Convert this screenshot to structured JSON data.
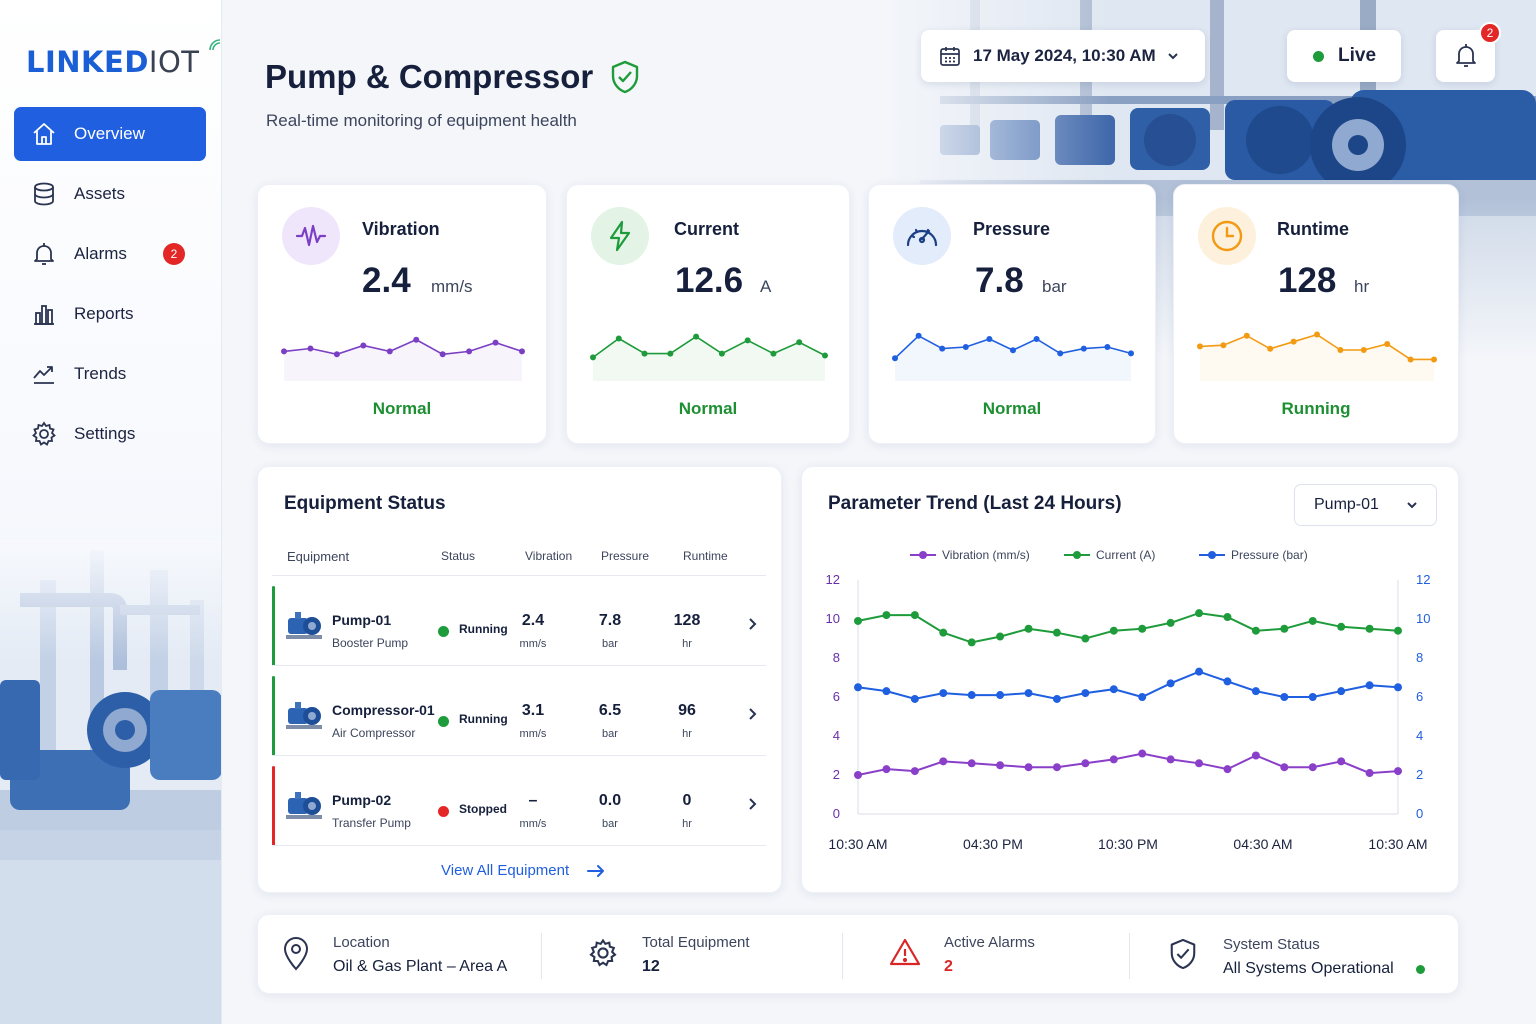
{
  "brand": {
    "logo_main": "LINKED",
    "logo_iot": "IOT"
  },
  "sidebar": {
    "items": [
      {
        "label": "Overview",
        "icon": "home-icon",
        "active": true
      },
      {
        "label": "Assets",
        "icon": "database-icon"
      },
      {
        "label": "Alarms",
        "icon": "bell-icon",
        "badge": "2"
      },
      {
        "label": "Reports",
        "icon": "bar-chart-icon"
      },
      {
        "label": "Trends",
        "icon": "trend-line-icon"
      },
      {
        "label": "Settings",
        "icon": "gear-icon"
      }
    ]
  },
  "header": {
    "title": "Pump & Compressor",
    "subtitle": "Real-time monitoring of equipment health",
    "datetime": "17 May 2024, 10:30 AM",
    "live_label": "Live",
    "notifications": "2"
  },
  "kpis": [
    {
      "label": "Vibration",
      "value": "2.4",
      "unit": "mm/s",
      "status": "Normal",
      "color": "#7b3fc4",
      "icon": "waveform-icon",
      "spark": [
        2.2,
        2.3,
        2.1,
        2.4,
        2.2,
        2.6,
        2.1,
        2.2,
        2.5,
        2.2
      ]
    },
    {
      "label": "Current",
      "value": "12.6",
      "unit": "A",
      "status": "Normal",
      "color": "#1e9b3a",
      "icon": "lightning-icon",
      "spark": [
        11.4,
        12.4,
        11.6,
        11.6,
        12.5,
        11.6,
        12.3,
        11.6,
        12.2,
        11.5
      ]
    },
    {
      "label": "Pressure",
      "value": "7.8",
      "unit": "bar",
      "status": "Normal",
      "color": "#1f5fe0",
      "icon": "gauge-icon",
      "spark": [
        6.8,
        8.2,
        7.4,
        7.5,
        8.0,
        7.3,
        8.0,
        7.1,
        7.4,
        7.5,
        7.1
      ]
    },
    {
      "label": "Runtime",
      "value": "128",
      "unit": "hr",
      "status": "Running",
      "color": "#f39a13",
      "icon": "clock-icon",
      "spark": [
        6.6,
        6.7,
        7.5,
        6.4,
        7.0,
        7.6,
        6.3,
        6.3,
        6.8,
        5.5,
        5.5
      ]
    }
  ],
  "equipment": {
    "title": "Equipment Status",
    "headers": [
      "Equipment",
      "Status",
      "Vibration",
      "Pressure",
      "Runtime"
    ],
    "rows": [
      {
        "name": "Pump-01",
        "type": "Booster Pump",
        "status": "Running",
        "status_color": "#1e9b3a",
        "vibration": "2.4",
        "vib_unit": "mm/s",
        "pressure": "7.8",
        "press_unit": "bar",
        "runtime": "128",
        "run_unit": "hr"
      },
      {
        "name": "Compressor-01",
        "type": "Air Compressor",
        "status": "Running",
        "status_color": "#1e9b3a",
        "vibration": "3.1",
        "vib_unit": "mm/s",
        "pressure": "6.5",
        "press_unit": "bar",
        "runtime": "96",
        "run_unit": "hr"
      },
      {
        "name": "Pump-02",
        "type": "Transfer Pump",
        "status": "Stopped",
        "status_color": "#e32727",
        "vibration": "–",
        "vib_unit": "mm/s",
        "pressure": "0.0",
        "press_unit": "bar",
        "runtime": "0",
        "run_unit": "hr"
      }
    ],
    "view_all": "View All Equipment"
  },
  "trend": {
    "title": "Parameter Trend (Last 24 Hours)",
    "selected_asset": "Pump-01",
    "legend": [
      {
        "name": "Vibration (mm/s)",
        "color": "#8a3fc9"
      },
      {
        "name": "Current (A)",
        "color": "#1e9b3a"
      },
      {
        "name": "Pressure (bar)",
        "color": "#1f5fe0"
      }
    ]
  },
  "chart_data": {
    "type": "line",
    "title": "Parameter Trend (Last 24 Hours)",
    "x_ticks": [
      "10:30 AM",
      "04:30 PM",
      "10:30 PM",
      "04:30 AM",
      "10:30 AM"
    ],
    "ylim": [
      0,
      12
    ],
    "y_ticks": [
      "0",
      "2",
      "4",
      "6",
      "8",
      "10",
      "12"
    ],
    "grid": false,
    "legend_position": "top",
    "series": [
      {
        "name": "Vibration (mm/s)",
        "color": "#8a3fc9",
        "values": [
          2.0,
          2.3,
          2.2,
          2.7,
          2.6,
          2.5,
          2.4,
          2.4,
          2.6,
          2.8,
          3.1,
          2.8,
          2.6,
          2.3,
          3.0,
          2.4,
          2.4,
          2.7,
          2.1,
          2.2
        ]
      },
      {
        "name": "Current (A)",
        "color": "#1e9b3a",
        "values": [
          9.9,
          10.2,
          10.2,
          9.3,
          8.8,
          9.1,
          9.5,
          9.3,
          9.0,
          9.4,
          9.5,
          9.8,
          10.3,
          10.1,
          9.4,
          9.5,
          9.9,
          9.6,
          9.5,
          9.4
        ]
      },
      {
        "name": "Pressure (bar)",
        "color": "#1f5fe0",
        "values": [
          6.5,
          6.3,
          5.9,
          6.2,
          6.1,
          6.1,
          6.2,
          5.9,
          6.2,
          6.4,
          6.0,
          6.7,
          7.3,
          6.8,
          6.3,
          6.0,
          6.0,
          6.3,
          6.6,
          6.5
        ]
      }
    ]
  },
  "footer": {
    "location_label": "Location",
    "location_value": "Oil & Gas Plant – Area A",
    "total_label": "Total Equipment",
    "total_value": "12",
    "alarms_label": "Active Alarms",
    "alarms_value": "2",
    "system_label": "System Status",
    "system_value": "All Systems Operational"
  }
}
